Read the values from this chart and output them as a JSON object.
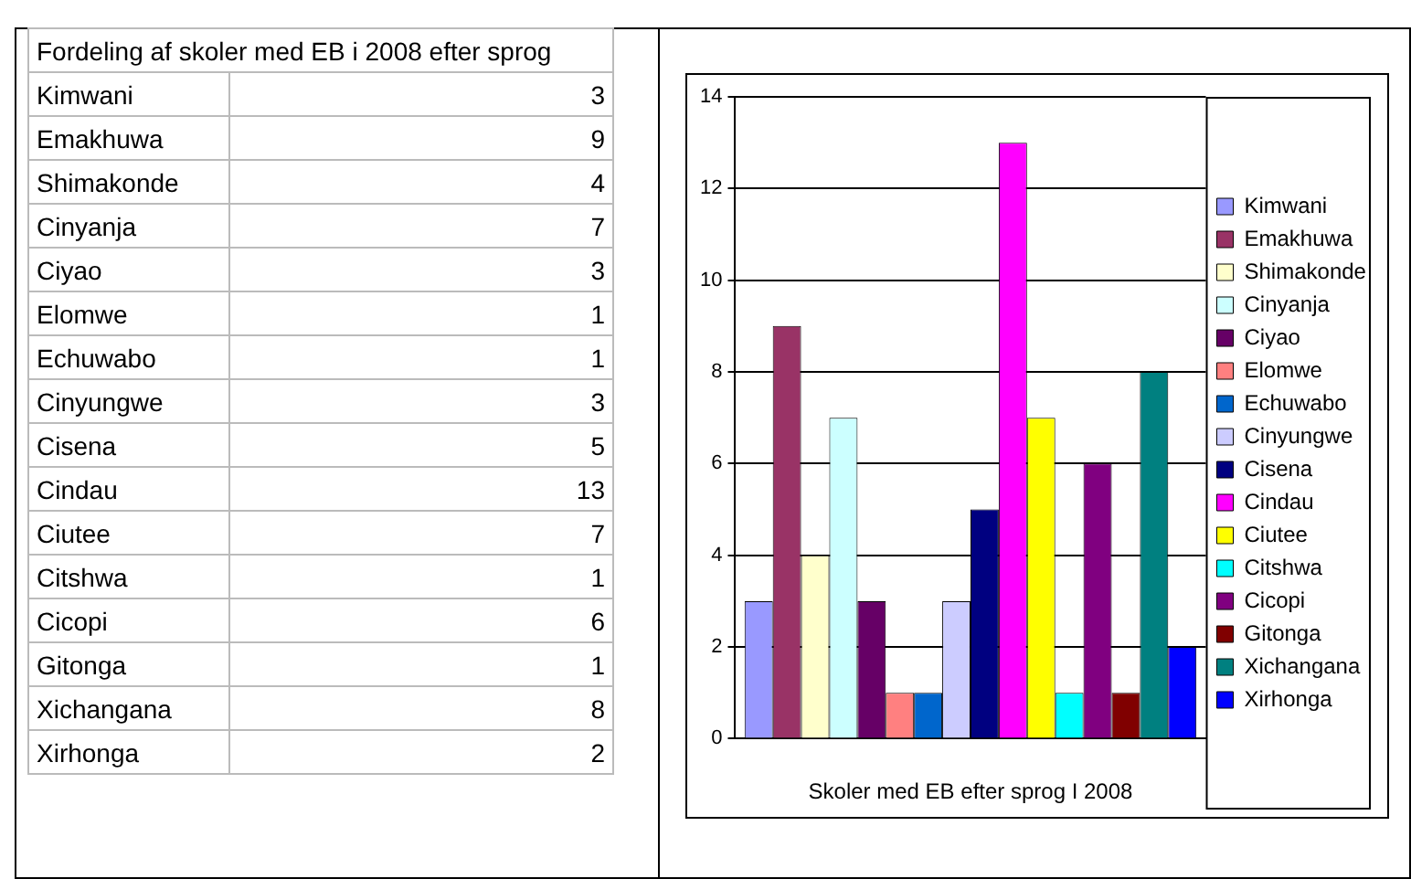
{
  "chart_data": [
    {
      "type": "other",
      "title": "Fordeling af skoler med EB i 2008 efter sprog",
      "categories": [
        "Kimwani",
        "Emakhuwa",
        "Shimakonde",
        "Cinyanja",
        "Ciyao",
        "Elomwe",
        "Echuwabo",
        "Cinyungwe",
        "Cisena",
        "Cindau",
        "Ciutee",
        "Citshwa",
        "Cicopi",
        "Gitonga",
        "Xichangana",
        "Xirhonga"
      ],
      "values": [
        3,
        9,
        4,
        7,
        3,
        1,
        1,
        3,
        5,
        13,
        7,
        1,
        6,
        1,
        8,
        2
      ],
      "data_labels": true
    },
    {
      "type": "bar",
      "xlabel": "Skoler med EB efter sprog I 2008",
      "categories": [
        null
      ],
      "series": [
        {
          "name": "Kimwani",
          "color": "#9999ff",
          "values": [
            3
          ]
        },
        {
          "name": "Emakhuwa",
          "color": "#993366",
          "values": [
            9
          ]
        },
        {
          "name": "Shimakonde",
          "color": "#ffffcc",
          "values": [
            4
          ]
        },
        {
          "name": "Cinyanja",
          "color": "#ccffff",
          "values": [
            7
          ]
        },
        {
          "name": "Ciyao",
          "color": "#660066",
          "values": [
            3
          ]
        },
        {
          "name": "Elomwe",
          "color": "#ff8080",
          "values": [
            1
          ]
        },
        {
          "name": "Echuwabo",
          "color": "#0066cc",
          "values": [
            1
          ]
        },
        {
          "name": "Cinyungwe",
          "color": "#ccccff",
          "values": [
            3
          ]
        },
        {
          "name": "Cisena",
          "color": "#000080",
          "values": [
            5
          ]
        },
        {
          "name": "Cindau",
          "color": "#ff00ff",
          "values": [
            13
          ]
        },
        {
          "name": "Ciutee",
          "color": "#ffff00",
          "values": [
            7
          ]
        },
        {
          "name": "Citshwa",
          "color": "#00ffff",
          "values": [
            1
          ]
        },
        {
          "name": "Cicopi",
          "color": "#800080",
          "values": [
            6
          ]
        },
        {
          "name": "Gitonga",
          "color": "#800000",
          "values": [
            1
          ]
        },
        {
          "name": "Xichangana",
          "color": "#008080",
          "values": [
            8
          ]
        },
        {
          "name": "Xirhonga",
          "color": "#0000ff",
          "values": [
            2
          ]
        }
      ],
      "ylim": [
        0,
        14
      ],
      "yticks": [
        0,
        2,
        4,
        6,
        8,
        10,
        12,
        14
      ],
      "grid": "y",
      "legend": "right"
    }
  ]
}
